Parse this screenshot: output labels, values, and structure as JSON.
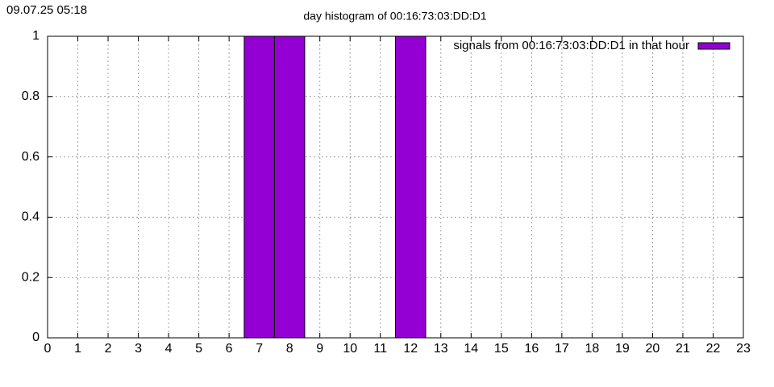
{
  "chart_data": {
    "type": "bar",
    "title": "day histogram of 00:16:73:03:DD:D1",
    "timestamp": "09.07.25 05:18",
    "x": [
      7,
      8,
      12
    ],
    "series": [
      {
        "name": "signals from 00:16:73:03:DD:D1 in that hour",
        "color": "#9400d3",
        "values": [
          1,
          1,
          1
        ]
      }
    ],
    "xlim": [
      0,
      23
    ],
    "xticks": [
      0,
      1,
      2,
      3,
      4,
      5,
      6,
      7,
      8,
      9,
      10,
      11,
      12,
      13,
      14,
      15,
      16,
      17,
      18,
      19,
      20,
      21,
      22,
      23
    ],
    "ylim": [
      0,
      1
    ],
    "yticks": [
      0,
      0.2,
      0.4,
      0.6,
      0.8,
      1
    ],
    "grid": true,
    "legend": "top-right"
  }
}
